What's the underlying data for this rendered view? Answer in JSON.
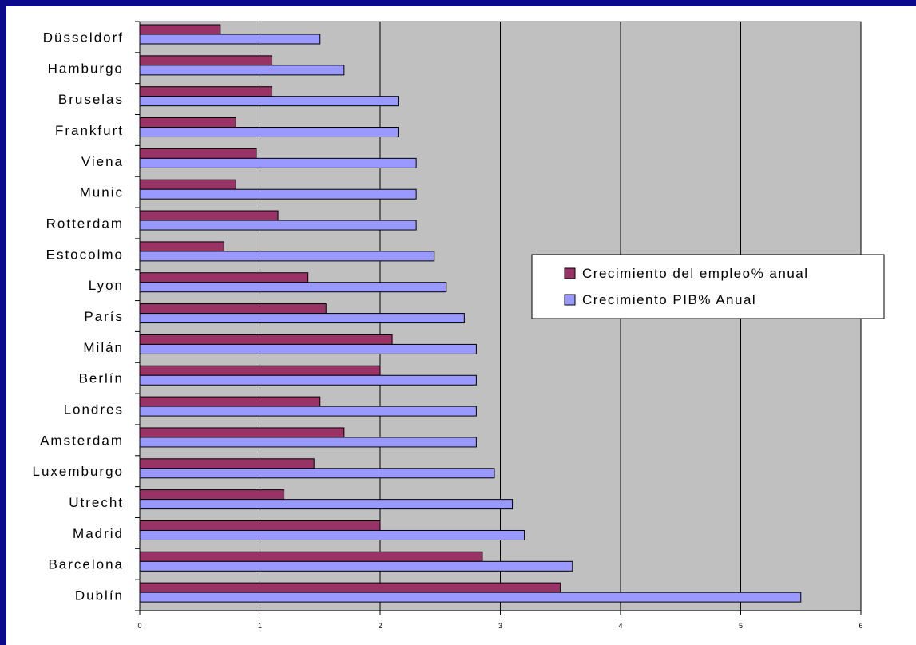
{
  "colors": {
    "frame": "#0a0a8a",
    "plot_background": "#c0c0c0",
    "gridline": "#000000",
    "series_employment": "#993366",
    "series_gdp": "#9999ff"
  },
  "chart_data": {
    "type": "bar",
    "orientation": "horizontal",
    "categories": [
      "Düsseldorf",
      "Hamburgo",
      "Bruselas",
      "Frankfurt",
      "Viena",
      "Munic",
      "Rotterdam",
      "Estocolmo",
      "Lyon",
      "París",
      "Milán",
      "Berlín",
      "Londres",
      "Amsterdam",
      "Luxemburgo",
      "Utrecht",
      "Madrid",
      "Barcelona",
      "Dublín"
    ],
    "series": [
      {
        "name": "Crecimiento del empleo% anual",
        "values": [
          0.67,
          1.1,
          1.1,
          0.8,
          0.97,
          0.8,
          1.15,
          0.7,
          1.4,
          1.55,
          2.1,
          2.0,
          1.5,
          1.7,
          1.45,
          1.2,
          2.0,
          2.85,
          3.5
        ]
      },
      {
        "name": "Crecimiento PIB% Anual",
        "values": [
          1.5,
          1.7,
          2.15,
          2.15,
          2.3,
          2.3,
          2.3,
          2.45,
          2.55,
          2.7,
          2.8,
          2.8,
          2.8,
          2.8,
          2.95,
          3.1,
          3.2,
          3.6,
          5.5
        ]
      }
    ],
    "x_ticks": [
      "0",
      "1",
      "2",
      "3",
      "4",
      "5",
      "6"
    ],
    "xlim": [
      0,
      6
    ],
    "grid": true,
    "legend_position": "right-middle",
    "title": "",
    "xlabel": "",
    "ylabel": ""
  }
}
